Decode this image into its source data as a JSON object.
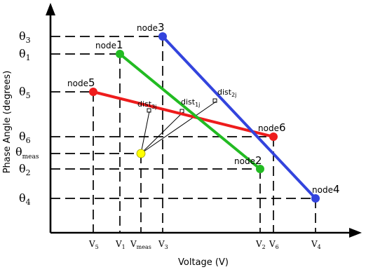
{
  "axes": {
    "x_label": "Voltage (V)",
    "y_label": "Phase Angle (degrees)"
  },
  "nodes": [
    {
      "id": "node3",
      "label": "node",
      "num": "3",
      "color": "#3344dd"
    },
    {
      "id": "node1",
      "label": "node",
      "num": "1",
      "color": "#22bb22"
    },
    {
      "id": "node5",
      "label": "node",
      "num": "5",
      "color": "#ee1c1c"
    },
    {
      "id": "node6",
      "label": "node",
      "num": "6",
      "color": "#ee1c1c"
    },
    {
      "id": "node2",
      "label": "node",
      "num": "2",
      "color": "#22bb22"
    },
    {
      "id": "node4",
      "label": "node",
      "num": "4",
      "color": "#3344dd"
    }
  ],
  "measurement": {
    "color": "#ffff00"
  },
  "segments": [
    {
      "id": "node5-node6",
      "color": "#ee1c1c"
    },
    {
      "id": "node1-node2",
      "color": "#22bb22"
    },
    {
      "id": "node3-node4",
      "color": "#3344dd"
    }
  ],
  "y_ticks": [
    {
      "base": "θ",
      "sub": "3"
    },
    {
      "base": "θ",
      "sub": "1"
    },
    {
      "base": "θ",
      "sub": "5"
    },
    {
      "base": "θ",
      "sub": "6"
    },
    {
      "base": "θ",
      "sub": "meas"
    },
    {
      "base": "θ",
      "sub": "2"
    },
    {
      "base": "θ",
      "sub": "4"
    }
  ],
  "x_ticks": [
    {
      "base": "V",
      "sub": "5"
    },
    {
      "base": "V",
      "sub": "1"
    },
    {
      "base": "V",
      "sub": "meas"
    },
    {
      "base": "V",
      "sub": "3"
    },
    {
      "base": "V",
      "sub": "2"
    },
    {
      "base": "V",
      "sub": "6"
    },
    {
      "base": "V",
      "sub": "4"
    }
  ],
  "distances": [
    {
      "base": "dist",
      "sub": "3j"
    },
    {
      "base": "dist",
      "sub": "1j"
    },
    {
      "base": "dist",
      "sub": "2j"
    }
  ]
}
